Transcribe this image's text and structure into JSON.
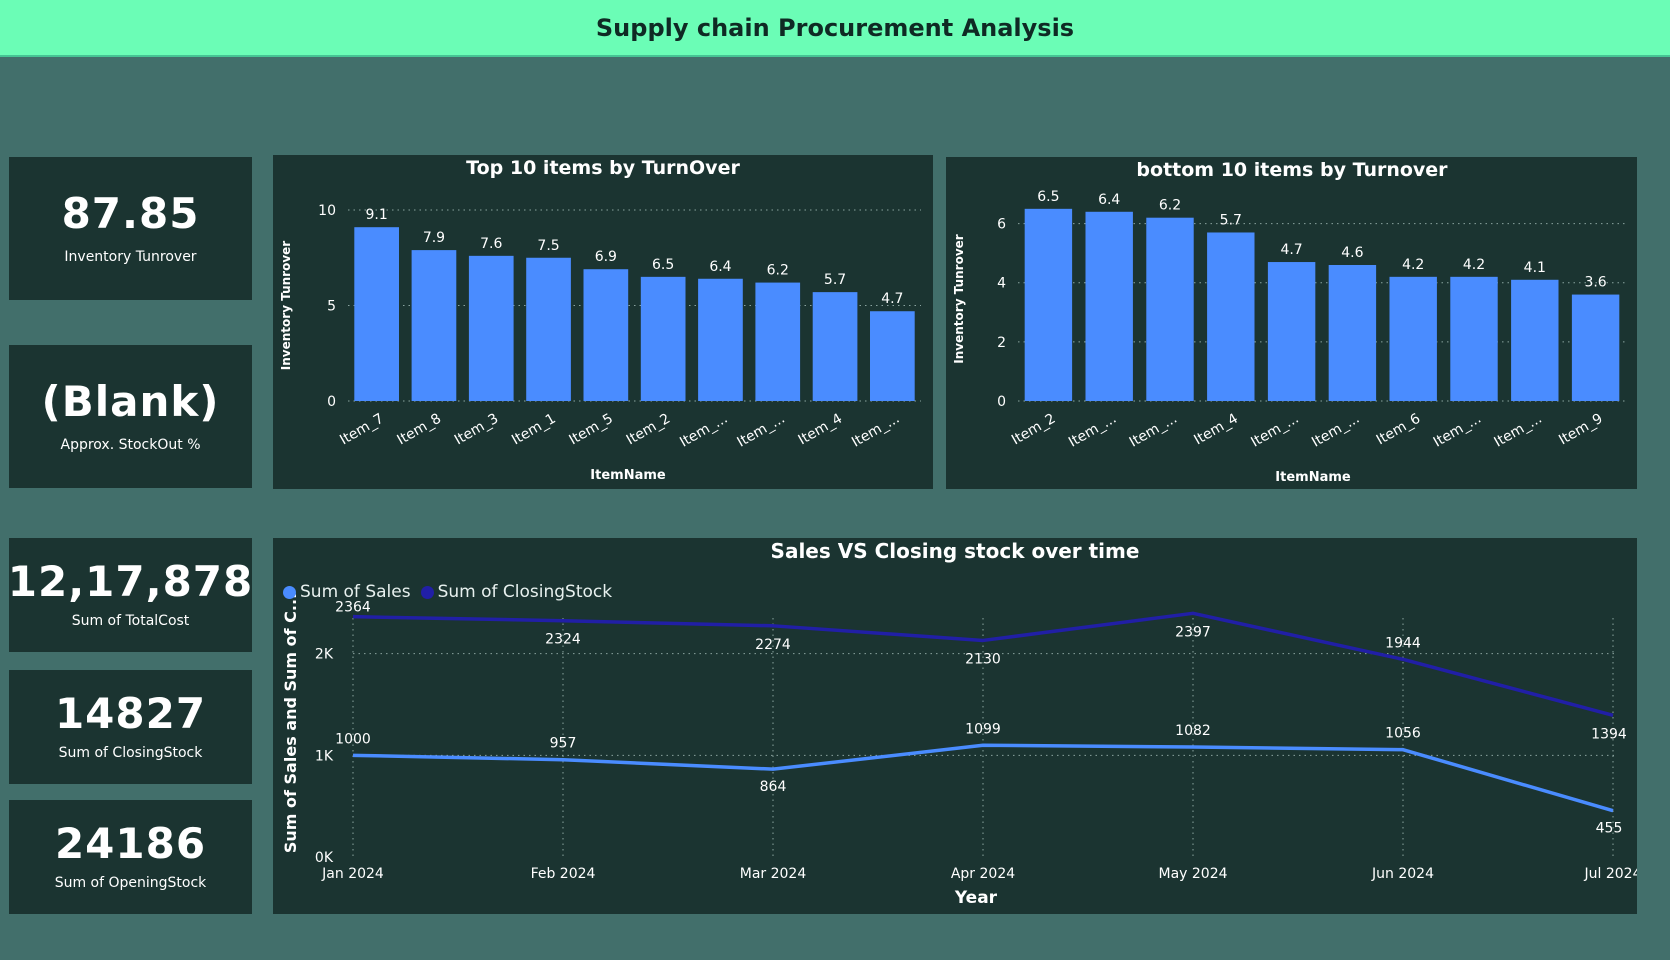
{
  "header": {
    "title": "Supply chain Procurement Analysis"
  },
  "colors": {
    "bar": "#4a8cff",
    "sales": "#4a8cff",
    "closing": "#211fa6",
    "panel": "#1b3431",
    "background": "#426f6b",
    "header": "#6bfdb6"
  },
  "kpis": [
    {
      "value": "87.85",
      "label": "Inventory Tunrover"
    },
    {
      "value": "(Blank)",
      "label": "Approx. StockOut %"
    },
    {
      "value": "12,17,878",
      "label": "Sum of TotalCost"
    },
    {
      "value": "14827",
      "label": "Sum of ClosingStock"
    },
    {
      "value": "24186",
      "label": "Sum of OpeningStock"
    }
  ],
  "chart_data": [
    {
      "type": "bar",
      "title": "Top 10 items by TurnOver",
      "xlabel": "ItemName",
      "ylabel": "Inventory Tunrover",
      "categories": [
        "Item_7",
        "Item_8",
        "Item_3",
        "Item_1",
        "Item_5",
        "Item_2",
        "Item_...",
        "Item_...",
        "Item_4",
        "Item_..."
      ],
      "values": [
        9.1,
        7.9,
        7.6,
        7.5,
        6.9,
        6.5,
        6.4,
        6.2,
        5.7,
        4.7
      ],
      "ylim": [
        0,
        10
      ],
      "yticks": [
        0,
        5,
        10
      ],
      "grid": true
    },
    {
      "type": "bar",
      "title": "bottom 10 items by Turnover",
      "xlabel": "ItemName",
      "ylabel": "Inventory Tunrover",
      "categories": [
        "Item_2",
        "Item_...",
        "Item_...",
        "Item_4",
        "Item_...",
        "Item_...",
        "Item_6",
        "Item_...",
        "Item_...",
        "Item_9"
      ],
      "values": [
        6.5,
        6.4,
        6.2,
        5.7,
        4.7,
        4.6,
        4.2,
        4.2,
        4.1,
        3.6
      ],
      "ylim": [
        0,
        6.9
      ],
      "yticks": [
        0,
        2,
        4,
        6
      ],
      "grid": true
    },
    {
      "type": "line",
      "title": "Sales VS Closing stock over time",
      "xlabel": "Year",
      "ylabel": "Sum of Sales and Sum of C...",
      "categories": [
        "Jan 2024",
        "Feb 2024",
        "Mar 2024",
        "Apr 2024",
        "May 2024",
        "Jun 2024",
        "Jul 2024"
      ],
      "series": [
        {
          "name": "Sum of Sales",
          "values": [
            1000,
            957,
            864,
            1099,
            1082,
            1056,
            455
          ]
        },
        {
          "name": "Sum of ClosingStock",
          "values": [
            2364,
            2324,
            2274,
            2130,
            2397,
            1944,
            1394
          ]
        }
      ],
      "ylim": [
        0,
        2400
      ],
      "yticks": [
        0,
        1000,
        2000
      ],
      "ytick_labels": [
        "0K",
        "1K",
        "2K"
      ],
      "legend": "top-left",
      "grid": true
    }
  ]
}
